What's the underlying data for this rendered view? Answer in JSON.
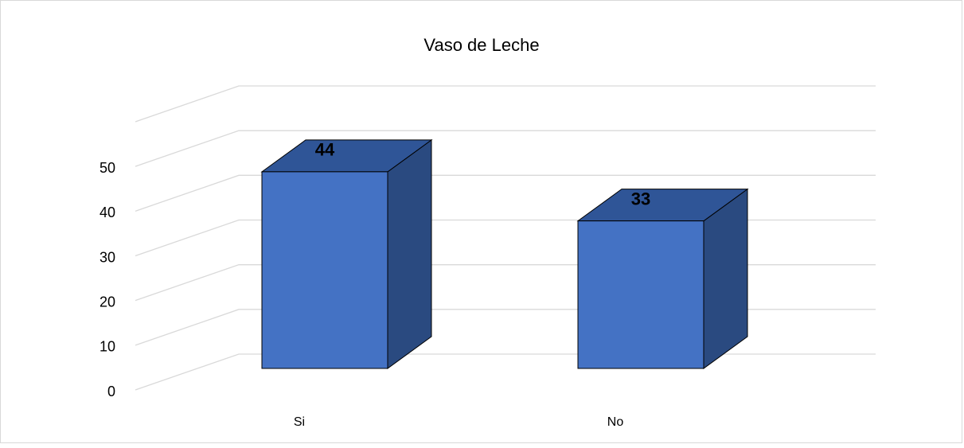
{
  "chart_data": {
    "type": "bar3d",
    "title": "Vaso de Leche",
    "categories": [
      "Si",
      "No"
    ],
    "values": [
      44,
      33
    ],
    "color": "#4472c4",
    "ylim": [
      0,
      60
    ],
    "yticks": [
      0,
      10,
      20,
      30,
      40,
      50
    ],
    "grid": true
  }
}
